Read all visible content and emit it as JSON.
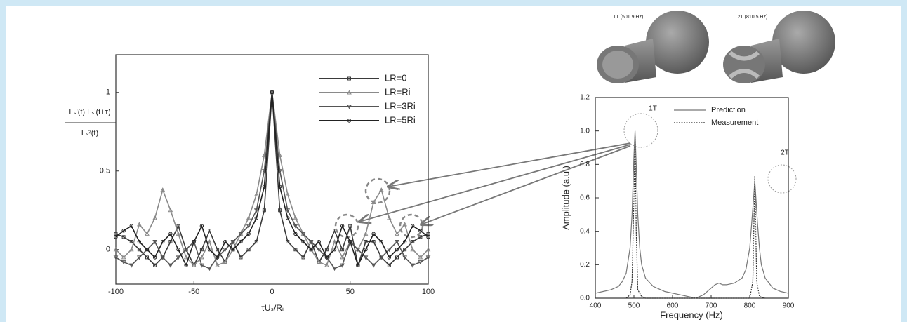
{
  "chart_data": [
    {
      "type": "line",
      "xlabel": "τUₛ/Rᵢ",
      "ylabel": [
        "Lₛ'(t) Lₛ'(t+τ)",
        "Lₛ²(t)"
      ],
      "x": [
        -100,
        -95,
        -90,
        -85,
        -80,
        -75,
        -70,
        -65,
        -60,
        -55,
        -50,
        -45,
        -40,
        -35,
        -30,
        -25,
        -20,
        -15,
        -10,
        -5,
        0,
        5,
        10,
        15,
        20,
        25,
        30,
        35,
        40,
        45,
        50,
        55,
        60,
        65,
        70,
        75,
        80,
        85,
        90,
        95,
        100
      ],
      "series": [
        {
          "name": "LR=0",
          "color": "#3a3a3a",
          "marker": "square",
          "values": [
            0.1,
            0.08,
            0.05,
            0.0,
            -0.05,
            -0.1,
            -0.05,
            0.05,
            0.15,
            0.0,
            -0.1,
            0.0,
            0.12,
            0.0,
            -0.08,
            0.05,
            -0.05,
            0.0,
            0.05,
            0.25,
            1,
            0.25,
            0.05,
            0.0,
            -0.05,
            0.05,
            -0.08,
            0.0,
            0.12,
            0.0,
            0.15,
            -0.1,
            0.05,
            0.05,
            -0.05,
            -0.1,
            -0.05,
            0.0,
            0.05,
            0.08,
            0.1
          ]
        },
        {
          "name": "LR=Ri",
          "color": "#8a8a8a",
          "marker": "triangle",
          "values": [
            0.0,
            -0.05,
            0.0,
            0.16,
            0.1,
            0.2,
            0.38,
            0.25,
            0.1,
            -0.05,
            -0.1,
            -0.05,
            0.05,
            -0.1,
            -0.08,
            0.0,
            0.1,
            0.2,
            0.35,
            0.6,
            1,
            0.6,
            0.35,
            0.2,
            0.1,
            0.0,
            -0.08,
            -0.1,
            0.05,
            -0.05,
            0.05,
            0.0,
            0.1,
            0.3,
            0.38,
            0.2,
            0.1,
            0.16,
            0.0,
            -0.05,
            0.0
          ]
        },
        {
          "name": "LR=3Ri",
          "color": "#555555",
          "marker": "triangle-down",
          "values": [
            -0.05,
            -0.08,
            -0.1,
            -0.05,
            0.0,
            0.05,
            -0.05,
            -0.1,
            -0.05,
            0.0,
            0.05,
            -0.1,
            -0.12,
            -0.05,
            0.0,
            0.05,
            0.1,
            0.15,
            0.25,
            0.5,
            1,
            0.5,
            0.25,
            0.15,
            0.1,
            0.05,
            0.0,
            -0.05,
            -0.12,
            -0.1,
            0.05,
            0.0,
            -0.05,
            -0.1,
            -0.05,
            0.0,
            0.05,
            -0.05,
            -0.1,
            -0.08,
            -0.05
          ]
        },
        {
          "name": "LR=5Ri",
          "color": "#222222",
          "marker": "circle",
          "values": [
            0.08,
            0.12,
            0.15,
            0.05,
            0.0,
            -0.05,
            0.05,
            0.1,
            0.0,
            -0.1,
            0.05,
            0.15,
            0.0,
            -0.05,
            0.05,
            0.0,
            0.05,
            0.1,
            0.2,
            0.4,
            1,
            0.4,
            0.2,
            0.1,
            0.05,
            0.0,
            0.05,
            -0.05,
            0.0,
            0.15,
            0.05,
            -0.1,
            0.0,
            0.1,
            0.05,
            -0.05,
            0.0,
            0.05,
            0.15,
            0.12,
            0.08
          ]
        }
      ],
      "xlim": [
        -100,
        100
      ],
      "xticks": [
        -100,
        -50,
        0,
        50,
        100
      ],
      "ylim": [
        -0.22,
        1.24
      ],
      "yticks": [
        0,
        0.5,
        1
      ],
      "legend": "upper right",
      "grid": false
    },
    {
      "type": "line",
      "xlabel": "Frequency (Hz)",
      "ylabel": "Amplitude (a.u.)",
      "mode_shape_labels": [
        "1T (501.9 Hz)",
        "2T (810.5 Hz)"
      ],
      "annotations": [
        "1T",
        "2T"
      ],
      "series": [
        {
          "name": "Prediction",
          "color": "#777777",
          "dash": "solid",
          "x": [
            400,
            420,
            440,
            460,
            470,
            480,
            490,
            495,
            500,
            503,
            506,
            510,
            515,
            520,
            530,
            550,
            580,
            620,
            660,
            680,
            700,
            710,
            720,
            730,
            740,
            760,
            780,
            790,
            800,
            805,
            810,
            813,
            816,
            820,
            825,
            830,
            840,
            860,
            880,
            900
          ],
          "values": [
            0.03,
            0.04,
            0.05,
            0.07,
            0.1,
            0.15,
            0.3,
            0.5,
            0.85,
            1.0,
            0.8,
            0.5,
            0.3,
            0.2,
            0.12,
            0.07,
            0.04,
            0.02,
            0.0,
            0.02,
            0.06,
            0.08,
            0.09,
            0.08,
            0.08,
            0.09,
            0.12,
            0.17,
            0.3,
            0.45,
            0.6,
            0.7,
            0.6,
            0.45,
            0.3,
            0.2,
            0.12,
            0.06,
            0.04,
            0.03
          ]
        },
        {
          "name": "Measurement",
          "color": "#333333",
          "dash": "dotted",
          "x": [
            480,
            490,
            495,
            500,
            503,
            506,
            510,
            520,
            530,
            800,
            808,
            813,
            818,
            825,
            840
          ],
          "values": [
            0.0,
            0.02,
            0.1,
            0.6,
            0.97,
            0.4,
            0.05,
            0.01,
            0.0,
            0.0,
            0.1,
            0.73,
            0.1,
            0.01,
            0.0
          ]
        }
      ],
      "xlim": [
        400,
        900
      ],
      "xticks": [
        400,
        500,
        600,
        700,
        800,
        900
      ],
      "ylim": [
        0,
        1.2
      ],
      "yticks": [
        {
          "value": 0,
          "label": "0.0"
        },
        0.2,
        0.4,
        0.6,
        0.8,
        {
          "value": 1,
          "label": "1.0"
        },
        1.2
      ],
      "legend": "upper right",
      "grid": false
    }
  ]
}
